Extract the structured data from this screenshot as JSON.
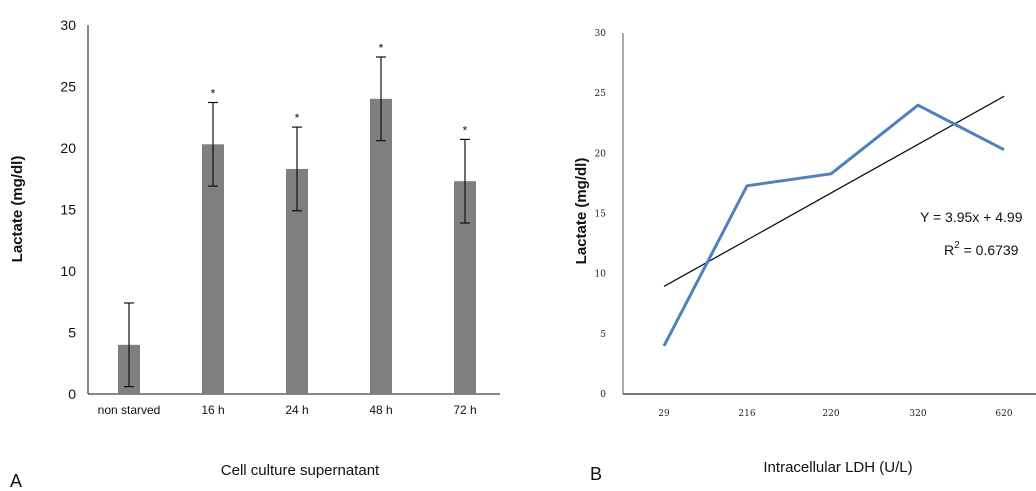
{
  "chart_data": [
    {
      "type": "bar",
      "panel_label": "A",
      "categories": [
        "non starved",
        "16 h",
        "24 h",
        "48 h",
        "72 h"
      ],
      "values": [
        4.0,
        20.3,
        18.3,
        24.0,
        17.3
      ],
      "errors": [
        3.4,
        3.4,
        3.4,
        3.4,
        3.4
      ],
      "significance": [
        "",
        "*",
        "*",
        "*",
        "*"
      ],
      "xlabel": "Cell culture supernatant",
      "ylabel": "Lactate (mg/dl)",
      "ylim": [
        0,
        30
      ],
      "yticks": [
        0,
        5,
        10,
        15,
        20,
        25,
        30
      ],
      "bar_color": "#7f7f7f"
    },
    {
      "type": "line",
      "panel_label": "B",
      "categories": [
        "29",
        "216",
        "220",
        "320",
        "620"
      ],
      "series": [
        {
          "values": [
            4.0,
            17.3,
            18.3,
            24.0,
            20.3
          ],
          "color": "#4f81bd"
        }
      ],
      "trendline": {
        "start": 8.94,
        "end": 24.74,
        "color": "#111111"
      },
      "equation": "Y = 3.95x + 4.99",
      "r_squared_prefix": "R",
      "r_squared_exponent": "2",
      "r_squared_value": " = 0.6739",
      "xlabel": "Intracellular LDH (U/L)",
      "ylabel": "Lactate (mg/dl)",
      "ylim": [
        0,
        30
      ],
      "yticks": [
        0,
        5,
        10,
        15,
        20,
        25,
        30
      ]
    }
  ]
}
